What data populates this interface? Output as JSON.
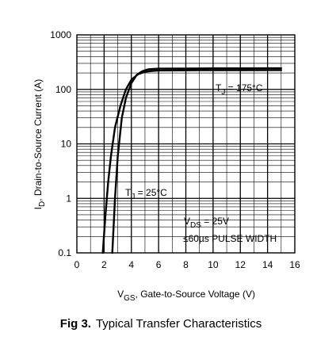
{
  "chart_data": {
    "type": "line",
    "y_scale": "log",
    "xlim": [
      0,
      16
    ],
    "ylim": [
      0.1,
      1000
    ],
    "x_ticks": [
      "0",
      "2",
      "4",
      "6",
      "8",
      "10",
      "12",
      "14",
      "16"
    ],
    "y_ticks": [
      "0.1",
      "1",
      "10",
      "100",
      "1000"
    ],
    "xlabel": {
      "main": "V",
      "sub": "GS",
      "rest": ", Gate-to-Source Voltage (V)"
    },
    "ylabel": {
      "main": "I",
      "sub": "D",
      "rest": ", Drain-to-Source Current  (A)"
    },
    "grid": true,
    "series": [
      {
        "label_main": "T",
        "label_sub": "J",
        "label_rest": " = 175°C",
        "x": [
          1.9,
          2.1,
          2.3,
          2.5,
          2.8,
          3.2,
          3.6,
          4.0,
          4.5,
          5.0,
          5.5,
          6.0,
          8.0,
          10.0,
          12.0,
          15.0
        ],
        "y": [
          0.1,
          0.5,
          2,
          6,
          20,
          50,
          100,
          150,
          190,
          210,
          218,
          222,
          224,
          225,
          225,
          226
        ]
      },
      {
        "label_main": "T",
        "label_sub": "J",
        "label_rest": " = 25°C",
        "x": [
          2.6,
          2.8,
          3.0,
          3.3,
          3.6,
          4.0,
          4.4,
          4.8,
          5.2,
          5.6,
          6.0,
          8.0,
          10.0,
          12.0,
          15.0
        ],
        "y": [
          0.1,
          1,
          6,
          30,
          70,
          130,
          185,
          215,
          232,
          238,
          240,
          242,
          243,
          243,
          244
        ]
      }
    ],
    "annotation": {
      "vds_main": "V",
      "vds_sub": "DS",
      "vds_rest": " = 25V",
      "pulse": "≤60µs PULSE WIDTH"
    },
    "caption_prefix": "Fig 3.",
    "caption_title": "Typical Transfer Characteristics"
  }
}
